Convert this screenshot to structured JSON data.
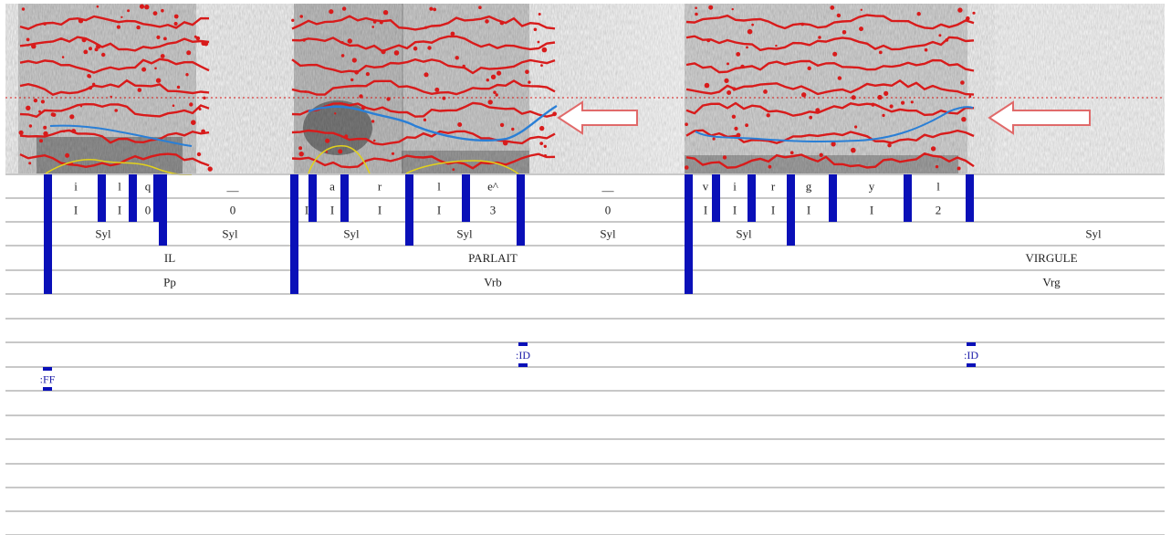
{
  "colors": {
    "boundary": "#0a10b8",
    "formant": "#d81b1b",
    "pitch": "#2a7fd6",
    "intensity": "#e2d11c",
    "arrow_stroke": "#e06a6a",
    "arrow_fill": "#ffffff",
    "tier_line": "#a8a8a8"
  },
  "icons": {
    "pitch_arrow_1": "left-arrow-icon",
    "pitch_arrow_2": "left-arrow-icon"
  },
  "tiers": [
    {
      "id": "phones",
      "intervals": [
        {
          "label": "i"
        },
        {
          "label": "l"
        },
        {
          "label": "q"
        },
        {
          "label": "__"
        },
        {
          "label": "a"
        },
        {
          "label": "r"
        },
        {
          "label": "l"
        },
        {
          "label": "e^"
        },
        {
          "label": "__"
        },
        {
          "label": "v"
        },
        {
          "label": "i"
        },
        {
          "label": "r"
        },
        {
          "label": "g"
        },
        {
          "label": "y"
        },
        {
          "label": "l"
        }
      ]
    },
    {
      "id": "phone-codes",
      "intervals": [
        {
          "label": "I"
        },
        {
          "label": "I"
        },
        {
          "label": "0"
        },
        {
          "label": "0"
        },
        {
          "label": "I"
        },
        {
          "label": "I"
        },
        {
          "label": "I"
        },
        {
          "label": "I"
        },
        {
          "label": "3"
        },
        {
          "label": "0"
        },
        {
          "label": "I"
        },
        {
          "label": "I"
        },
        {
          "label": "I"
        },
        {
          "label": "I"
        },
        {
          "label": "I"
        },
        {
          "label": "2"
        }
      ]
    },
    {
      "id": "syllables",
      "intervals": [
        {
          "label": "Syl"
        },
        {
          "label": "Syl"
        },
        {
          "label": "Syl"
        },
        {
          "label": "Syl"
        },
        {
          "label": "Syl"
        },
        {
          "label": "Syl"
        },
        {
          "label": "Syl"
        }
      ]
    },
    {
      "id": "words",
      "intervals": [
        {
          "label": "IL"
        },
        {
          "label": "PARLAIT"
        },
        {
          "label": "VIRGULE"
        }
      ]
    },
    {
      "id": "pos",
      "intervals": [
        {
          "label": "Pp"
        },
        {
          "label": "Vrb"
        },
        {
          "label": "Vrg"
        }
      ]
    }
  ],
  "markers": [
    {
      "label": ":ID"
    },
    {
      "label": ":ID"
    },
    {
      "label": ":FF"
    }
  ]
}
